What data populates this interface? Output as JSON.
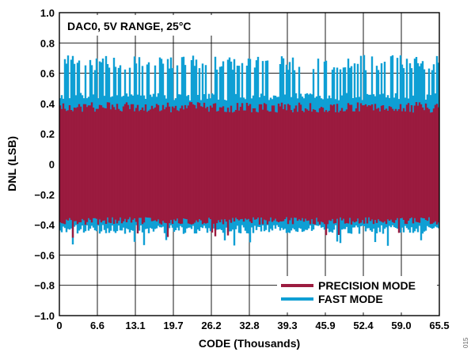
{
  "chart_data": {
    "type": "line",
    "annotation": "DAC0, 5V RANGE, 25°C",
    "xlabel": "CODE (Thousands)",
    "ylabel": "DNL (LSB)",
    "xlim": [
      0,
      65.5
    ],
    "ylim": [
      -1.0,
      1.0
    ],
    "x_ticks": [
      "0",
      "6.6",
      "13.1",
      "19.7",
      "26.2",
      "32.8",
      "39.3",
      "45.9",
      "52.4",
      "59.0",
      "65.5"
    ],
    "y_ticks": [
      "1.0",
      "0.8",
      "0.6",
      "0.4",
      "0.2",
      "0",
      "−0.2",
      "−0.4",
      "−0.6",
      "−0.8",
      "−1.0"
    ],
    "grid": true,
    "legend_position": "bottom-right",
    "series": [
      {
        "name": "FAST MODE",
        "color": "#0f9fd4",
        "typical_band": [
          -0.43,
          0.68
        ],
        "max_value": 0.72,
        "min_value": -0.54
      },
      {
        "name": "PRECISION MODE",
        "color": "#9b1b3f",
        "typical_band": [
          -0.38,
          0.38
        ],
        "max_value": 0.41,
        "min_value": -0.5
      }
    ]
  },
  "figure_id": "015"
}
